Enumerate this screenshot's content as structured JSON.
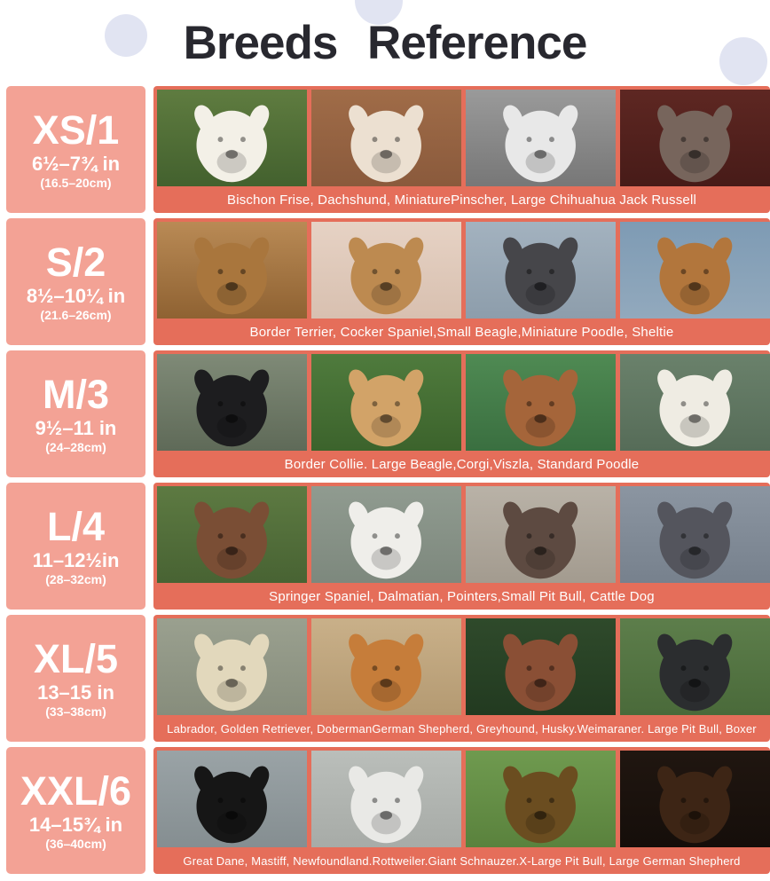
{
  "title": "Breeds Reference",
  "colors": {
    "panel_salmon": "#f3a295",
    "strip_coral": "#e56e5a",
    "title_color": "#28282f",
    "circle_lavender": "#e1e4f2",
    "text_white": "#ffffff"
  },
  "rows": [
    {
      "size": "XS/1",
      "range_in": "6½–7¾ in",
      "range_cm": "(16.5–20cm)",
      "breeds": "Bischon Frise, Dachshund, MiniaturePinscher, Large Chihuahua Jack Russell",
      "photos": [
        {
          "label": "white-poodle",
          "bg": "#5f7c40",
          "bg2": "#43612e",
          "fur": "#f3f0e7"
        },
        {
          "label": "jack-russell",
          "bg": "#a06c48",
          "bg2": "#8a5a3c",
          "fur": "#ece0d1"
        },
        {
          "label": "black-and-white-dog",
          "bg": "#9a9a9a",
          "bg2": "#777777",
          "fur": "#e8e8e8"
        },
        {
          "label": "gray-dog",
          "bg": "#5e2722",
          "bg2": "#471b18",
          "fur": "#77655c"
        }
      ]
    },
    {
      "size": "S/2",
      "range_in": "8½–10¼ in",
      "range_cm": "(21.6–26cm)",
      "breeds": "Border Terrier, Cocker Spaniel,Small Beagle,Miniature Poodle, Sheltie",
      "photos": [
        {
          "label": "cocker-spaniel",
          "bg": "#b98a55",
          "bg2": "#8f6232",
          "fur": "#a9763d"
        },
        {
          "label": "beagle",
          "bg": "#e6d2c4",
          "bg2": "#d8c0b0",
          "fur": "#bd8a50"
        },
        {
          "label": "gray-miniature-poodle",
          "bg": "#a3b2bf",
          "bg2": "#8d9dab",
          "fur": "#46464a"
        },
        {
          "label": "sheltie",
          "bg": "#7e9bb4",
          "bg2": "#92a9bd",
          "fur": "#b2763c"
        }
      ]
    },
    {
      "size": "M/3",
      "range_in": "9½–11 in",
      "range_cm": "(24–28cm)",
      "breeds": "Border Collie. Large Beagle,Corgi,Viszla, Standard Poodle",
      "photos": [
        {
          "label": "border-collie",
          "bg": "#7f8a77",
          "bg2": "#5f6a58",
          "fur": "#1d1d1f"
        },
        {
          "label": "beagle",
          "bg": "#4f7b3d",
          "bg2": "#3c632c",
          "fur": "#d2a368"
        },
        {
          "label": "vizsla-puppy",
          "bg": "#4f8a53",
          "bg2": "#3a6f40",
          "fur": "#a5653a"
        },
        {
          "label": "white-poodle",
          "bg": "#6a816b",
          "bg2": "#566c58",
          "fur": "#efece3"
        }
      ]
    },
    {
      "size": "L/4",
      "range_in": "11–12½in",
      "range_cm": "(28–32cm)",
      "breeds": "Springer Spaniel, Dalmatian, Pointers,Small Pit Bull, Cattle Dog",
      "photos": [
        {
          "label": "springer-spaniel",
          "bg": "#5d7a42",
          "bg2": "#486333",
          "fur": "#7a4e35"
        },
        {
          "label": "dalmatian",
          "bg": "#909b90",
          "bg2": "#7d887d",
          "fur": "#efeeea"
        },
        {
          "label": "pointer",
          "bg": "#b9b2a7",
          "bg2": "#a39b8f",
          "fur": "#5d4a41"
        },
        {
          "label": "cattle-dog-puppy",
          "bg": "#8b95a1",
          "bg2": "#77818d",
          "fur": "#54555d"
        }
      ]
    },
    {
      "size": "XL/5",
      "range_in": "13–15 in",
      "range_cm": "(33–38cm)",
      "breeds": "Labrador, Golden Retriever, DobermanGerman Shepherd, Greyhound, Husky.Weimaraner. Large Pit Bull, Boxer",
      "photos": [
        {
          "label": "yellow-labrador",
          "bg": "#9aa08f",
          "bg2": "#878d7c",
          "fur": "#e2d8bc"
        },
        {
          "label": "golden-retriever",
          "bg": "#c9b089",
          "bg2": "#b49a72",
          "fur": "#c67d3a"
        },
        {
          "label": "pit-bull",
          "bg": "#2f4a2b",
          "bg2": "#223a20",
          "fur": "#8a4f35"
        },
        {
          "label": "husky",
          "bg": "#5d7e4b",
          "bg2": "#4a6a3a",
          "fur": "#2b2d2f"
        }
      ]
    },
    {
      "size": "XXL/6",
      "range_in": "14–15¾ in",
      "range_cm": "(36–40cm)",
      "breeds": "Great Dane, Mastiff, Newfoundland.Rottweiler.Giant Schnauzer.X-Large Pit Bull, Large German Shepherd",
      "photos": [
        {
          "label": "newfoundland",
          "bg": "#9aa3a6",
          "bg2": "#858e91",
          "fur": "#161616"
        },
        {
          "label": "great-dane",
          "bg": "#babeba",
          "bg2": "#a7aba7",
          "fur": "#e9e9e6"
        },
        {
          "label": "german-shepherd",
          "bg": "#6f9a4f",
          "bg2": "#5a823d",
          "fur": "#6b4d20"
        },
        {
          "label": "tibetan-mastiff",
          "bg": "#201610",
          "bg2": "#150e0a",
          "fur": "#3d2515"
        }
      ]
    }
  ]
}
